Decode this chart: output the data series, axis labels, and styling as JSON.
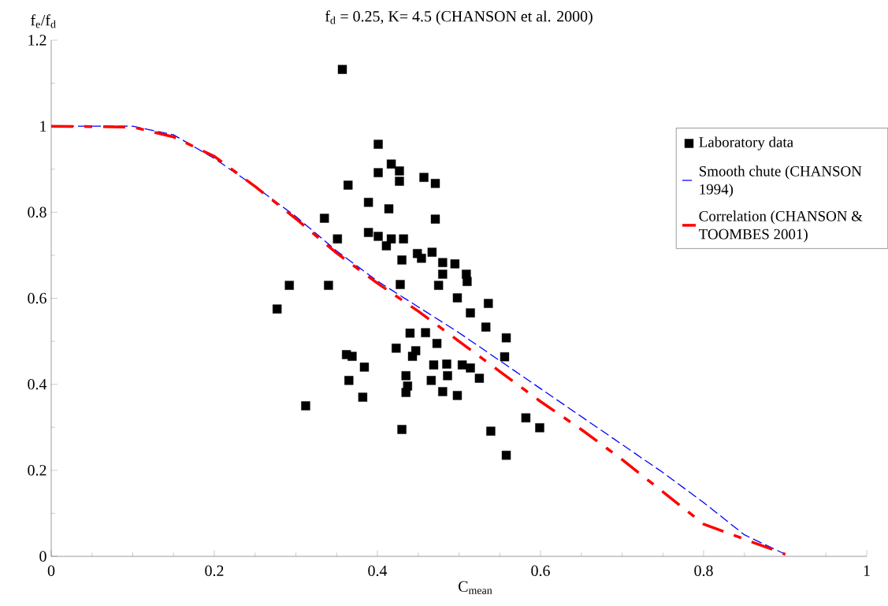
{
  "chart_data": {
    "type": "scatter",
    "title": "f$_{d}$ = 0.25, K= 4.5 (CHANSON et al. 2000)",
    "xlabel": "C$_{mean}$",
    "ylabel": "f$_{e}$/f$_{d}$",
    "xlim": [
      0,
      1
    ],
    "ylim": [
      0,
      1.2
    ],
    "xticks": [
      0,
      0.2,
      0.4,
      0.6,
      0.8,
      1
    ],
    "yticks": [
      0,
      0.2,
      0.4,
      0.6,
      0.8,
      1,
      1.2
    ],
    "grid": false,
    "legend": "top right",
    "series": [
      {
        "name": "Laboratory data",
        "type": "scatter",
        "marker": "square",
        "color": "#000000",
        "x": [
          0.357,
          0.401,
          0.417,
          0.427,
          0.427,
          0.401,
          0.457,
          0.471,
          0.364,
          0.389,
          0.414,
          0.471,
          0.335,
          0.389,
          0.401,
          0.351,
          0.417,
          0.432,
          0.411,
          0.449,
          0.454,
          0.467,
          0.43,
          0.48,
          0.495,
          0.48,
          0.509,
          0.51,
          0.475,
          0.428,
          0.292,
          0.34,
          0.277,
          0.498,
          0.536,
          0.514,
          0.533,
          0.558,
          0.556,
          0.44,
          0.459,
          0.473,
          0.423,
          0.447,
          0.443,
          0.469,
          0.485,
          0.504,
          0.514,
          0.525,
          0.486,
          0.466,
          0.435,
          0.437,
          0.435,
          0.48,
          0.498,
          0.582,
          0.599,
          0.539,
          0.43,
          0.558,
          0.362,
          0.369,
          0.384,
          0.365,
          0.382,
          0.312
        ],
        "values": [
          1.132,
          0.958,
          0.912,
          0.896,
          0.872,
          0.892,
          0.881,
          0.867,
          0.863,
          0.823,
          0.808,
          0.784,
          0.786,
          0.753,
          0.744,
          0.738,
          0.738,
          0.738,
          0.722,
          0.704,
          0.693,
          0.707,
          0.689,
          0.683,
          0.68,
          0.656,
          0.656,
          0.639,
          0.63,
          0.632,
          0.63,
          0.63,
          0.575,
          0.601,
          0.588,
          0.566,
          0.533,
          0.508,
          0.464,
          0.519,
          0.52,
          0.495,
          0.484,
          0.478,
          0.465,
          0.445,
          0.447,
          0.445,
          0.438,
          0.414,
          0.42,
          0.409,
          0.42,
          0.396,
          0.381,
          0.383,
          0.374,
          0.322,
          0.299,
          0.291,
          0.295,
          0.235,
          0.469,
          0.465,
          0.44,
          0.409,
          0.37,
          0.35
        ]
      },
      {
        "name": "Smooth chute (CHANSON 1994)",
        "type": "line",
        "line_style": "dashed",
        "marker": "none",
        "color": "#0000ff",
        "x": [
          0,
          0.1,
          0.15,
          0.2,
          0.25,
          0.3,
          0.35,
          0.4,
          0.45,
          0.5,
          0.55,
          0.6,
          0.65,
          0.7,
          0.75,
          0.8,
          0.85,
          0.9
        ],
        "values": [
          1,
          1.0,
          0.98,
          0.925,
          0.86,
          0.79,
          0.71,
          0.64,
          0.58,
          0.52,
          0.455,
          0.39,
          0.325,
          0.26,
          0.195,
          0.125,
          0.05,
          0.005
        ]
      },
      {
        "name": "Correlation (CHANSON & TOOMBES 2001)",
        "type": "line",
        "line_style": "dashed",
        "marker": "none",
        "color": "#ff0000",
        "x": [
          0,
          0.1,
          0.15,
          0.2,
          0.25,
          0.3,
          0.35,
          0.4,
          0.45,
          0.5,
          0.55,
          0.6,
          0.65,
          0.7,
          0.75,
          0.8,
          0.85,
          0.9
        ],
        "values": [
          1,
          0.998,
          0.975,
          0.93,
          0.86,
          0.785,
          0.705,
          0.635,
          0.57,
          0.5,
          0.43,
          0.36,
          0.295,
          0.225,
          0.15,
          0.075,
          0.04,
          0.005
        ]
      }
    ]
  }
}
